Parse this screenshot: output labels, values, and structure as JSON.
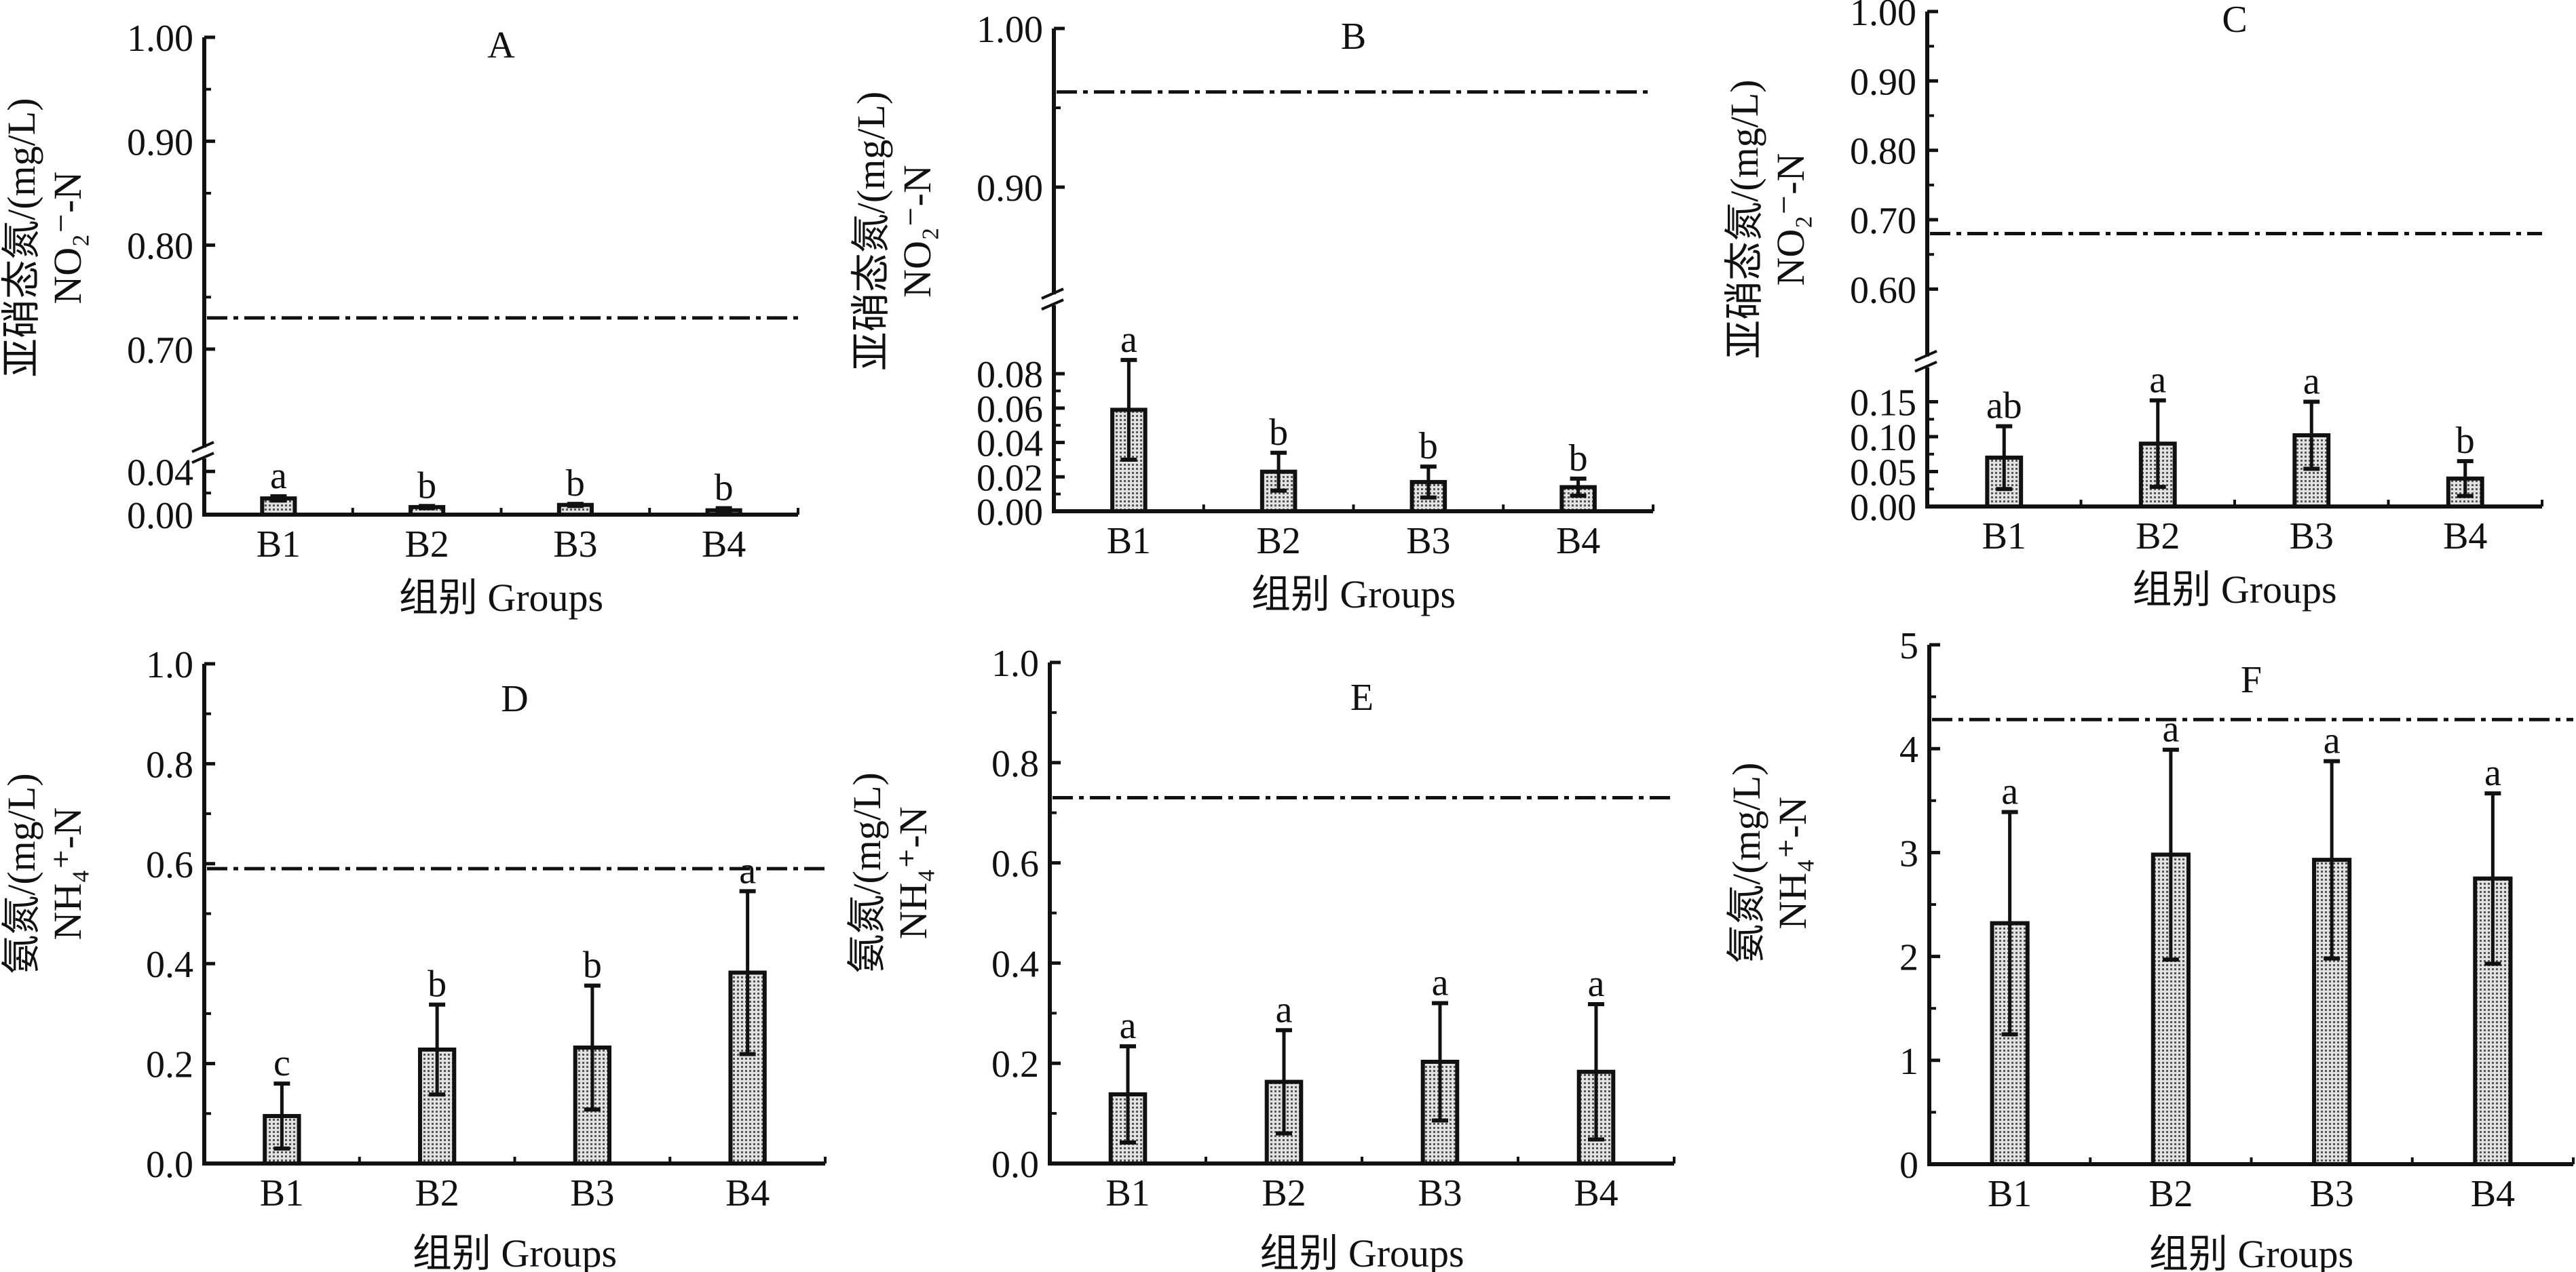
{
  "chart_data": [
    {
      "type": "bar",
      "panel": "A",
      "categories": [
        "B1",
        "B2",
        "B3",
        "B4"
      ],
      "values": [
        0.015,
        0.007,
        0.009,
        0.004
      ],
      "errors": [
        0.002,
        0.001,
        0.001,
        0.002
      ],
      "significance": [
        "a",
        "b",
        "b",
        "b"
      ],
      "reference_line": 0.73,
      "ylabel": [
        "亚硝态氮/(mg/L)",
        "NO₂⁻-N"
      ],
      "xlabel": "组别 Groups",
      "y_break": true,
      "ylim_lower": [
        0,
        0.057
      ],
      "ylim_upper": [
        0.6,
        1.0
      ],
      "yticks_lower": [
        0.0,
        0.04
      ],
      "yticks_upper": [
        0.7,
        0.8,
        0.9,
        1.0
      ],
      "ytick_labels_lower": [
        "0.00",
        "0.04"
      ],
      "ytick_labels_upper": [
        "0.70",
        "0.80",
        "0.90",
        "1.00"
      ]
    },
    {
      "type": "bar",
      "panel": "B",
      "categories": [
        "B1",
        "B2",
        "B3",
        "B4"
      ],
      "values": [
        0.059,
        0.023,
        0.017,
        0.014
      ],
      "errors": [
        0.029,
        0.011,
        0.009,
        0.005
      ],
      "significance": [
        "a",
        "b",
        "b",
        "b"
      ],
      "reference_line": 0.96,
      "ylabel": [
        "亚硝态氮/(mg/L)",
        "NO₂⁻-N"
      ],
      "xlabel": "组别 Groups",
      "y_break": true,
      "ylim_lower": [
        0,
        0.123
      ],
      "ylim_upper": [
        0.829,
        1.0
      ],
      "yticks_lower": [
        0.0,
        0.02,
        0.04,
        0.06,
        0.08
      ],
      "yticks_upper": [
        0.9,
        1.0
      ],
      "ytick_labels_lower": [
        "0.00",
        "0.02",
        "0.04",
        "0.06",
        "0.08"
      ],
      "ytick_labels_upper": [
        "0.90",
        "1.00"
      ]
    },
    {
      "type": "bar",
      "panel": "C",
      "categories": [
        "B1",
        "B2",
        "B3",
        "B4"
      ],
      "values": [
        0.07,
        0.09,
        0.102,
        0.04
      ],
      "errors": [
        0.045,
        0.062,
        0.048,
        0.025
      ],
      "significance": [
        "ab",
        "a",
        "a",
        "b"
      ],
      "reference_line": 0.68,
      "ylabel": [
        "亚硝态氮/(mg/L)",
        "NO₂⁻-N"
      ],
      "xlabel": "组别 Groups",
      "y_break": true,
      "ylim_lower": [
        0,
        0.207
      ],
      "ylim_upper": [
        0.495,
        1.0
      ],
      "yticks_lower": [
        0.0,
        0.05,
        0.1,
        0.15
      ],
      "yticks_upper": [
        0.6,
        0.7,
        0.8,
        0.9,
        1.0
      ],
      "ytick_labels_lower": [
        "0.00",
        "0.05",
        "0.10",
        "0.15"
      ],
      "ytick_labels_upper": [
        "0.60",
        "0.70",
        "0.80",
        "0.90",
        "1.00"
      ]
    },
    {
      "type": "bar",
      "panel": "D",
      "categories": [
        "B1",
        "B2",
        "B3",
        "B4"
      ],
      "values": [
        0.095,
        0.228,
        0.232,
        0.382
      ],
      "errors": [
        0.065,
        0.09,
        0.124,
        0.163
      ],
      "significance": [
        "c",
        "b",
        "b",
        "a"
      ],
      "reference_line": 0.59,
      "ylabel": [
        "氨氮/(mg/L)",
        "NH₄⁺-N"
      ],
      "xlabel": "组别 Groups",
      "y_break": false,
      "ylim": [
        0,
        1.0
      ],
      "yticks": [
        0.0,
        0.2,
        0.4,
        0.6,
        0.8,
        1.0
      ],
      "ytick_labels": [
        "0.0",
        "0.2",
        "0.4",
        "0.6",
        "0.8",
        "1.0"
      ]
    },
    {
      "type": "bar",
      "panel": "E",
      "categories": [
        "B1",
        "B2",
        "B3",
        "B4"
      ],
      "values": [
        0.138,
        0.163,
        0.203,
        0.183
      ],
      "errors": [
        0.096,
        0.103,
        0.117,
        0.135
      ],
      "significance": [
        "a",
        "a",
        "a",
        "a"
      ],
      "reference_line": 0.73,
      "ylabel": [
        "氨氮/(mg/L)",
        "NH₄⁺-N"
      ],
      "xlabel": "组别 Groups",
      "y_break": false,
      "ylim": [
        0,
        1.0
      ],
      "yticks": [
        0.0,
        0.2,
        0.4,
        0.6,
        0.8,
        1.0
      ],
      "ytick_labels": [
        "0.0",
        "0.2",
        "0.4",
        "0.6",
        "0.8",
        "1.0"
      ]
    },
    {
      "type": "bar",
      "panel": "F",
      "categories": [
        "B1",
        "B2",
        "B3",
        "B4"
      ],
      "values": [
        2.32,
        2.98,
        2.93,
        2.75
      ],
      "errors": [
        1.07,
        1.01,
        0.95,
        0.82
      ],
      "significance": [
        "a",
        "a",
        "a",
        "a"
      ],
      "reference_line": 4.28,
      "ylabel": [
        "氨氮/(mg/L)",
        "NH₄⁺-N"
      ],
      "xlabel": "组别 Groups",
      "y_break": false,
      "ylim": [
        0,
        5
      ],
      "yticks": [
        0,
        1,
        2,
        3,
        4,
        5
      ],
      "ytick_labels": [
        "0",
        "1",
        "2",
        "3",
        "4",
        "5"
      ]
    }
  ],
  "colors": {
    "bar_fill": "#a8a8a8",
    "ink": "#111111",
    "background": "#ffffff"
  }
}
